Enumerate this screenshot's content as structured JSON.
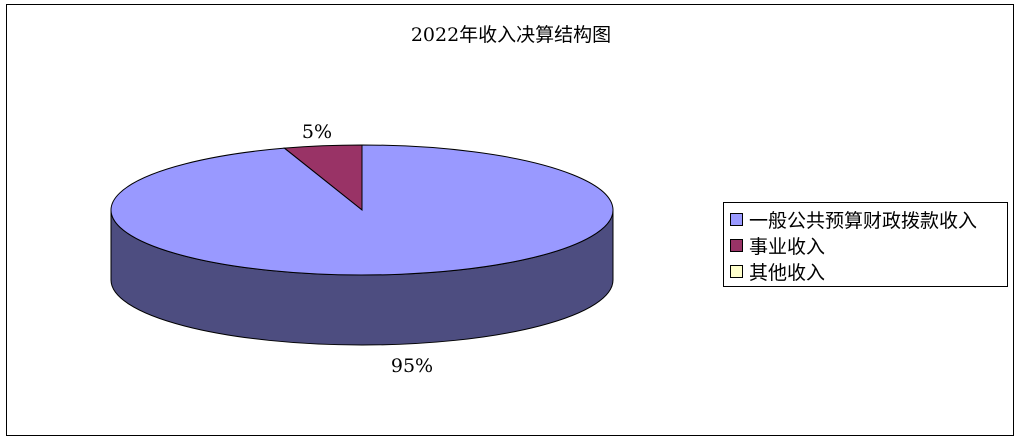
{
  "chart_data": {
    "type": "pie",
    "title": "2022年收入决算结构图",
    "categories": [
      "一般公共预算财政拨款收入",
      "事业收入",
      "其他收入"
    ],
    "values": [
      95,
      5,
      0
    ],
    "data_labels": [
      "95%",
      "5%",
      ""
    ],
    "colors": [
      "#9999FF",
      "#993366",
      "#FFFFCC"
    ],
    "side_color": "#4D4D80",
    "legend_position": "right",
    "style": "3d"
  }
}
